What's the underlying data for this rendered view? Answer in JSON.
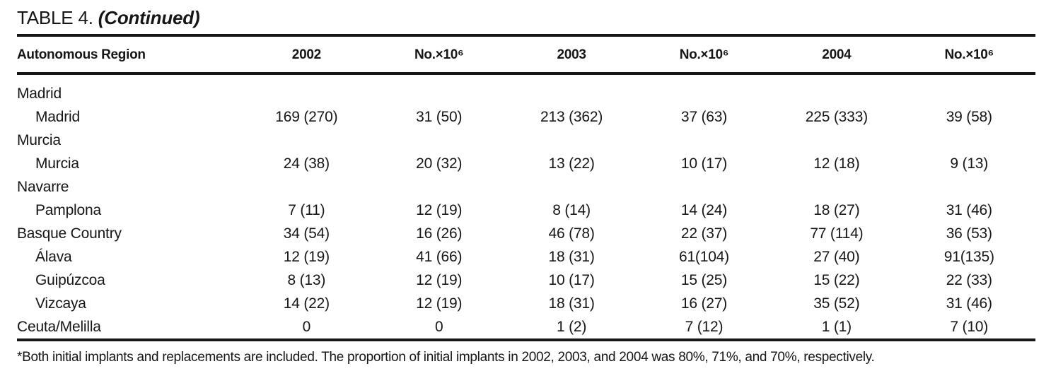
{
  "title": {
    "prefix": "TABLE 4. ",
    "continued": "(Continued)"
  },
  "table": {
    "region_header": "Autonomous Region",
    "columns": [
      {
        "label": "2002"
      },
      {
        "label": "No.×10⁶"
      },
      {
        "label": "2003"
      },
      {
        "label": "No.×10⁶"
      },
      {
        "label": "2004"
      },
      {
        "label": "No.×10⁶"
      }
    ],
    "rows": [
      {
        "label": "Madrid",
        "indent": false,
        "values": [
          "",
          "",
          "",
          "",
          "",
          ""
        ]
      },
      {
        "label": "Madrid",
        "indent": true,
        "values": [
          "169 (270)",
          "31 (50)",
          "213 (362)",
          "37 (63)",
          "225 (333)",
          "39 (58)"
        ]
      },
      {
        "label": "Murcia",
        "indent": false,
        "values": [
          "",
          "",
          "",
          "",
          "",
          ""
        ]
      },
      {
        "label": "Murcia",
        "indent": true,
        "values": [
          "24 (38)",
          "20 (32)",
          "13 (22)",
          "10 (17)",
          "12 (18)",
          "9 (13)"
        ]
      },
      {
        "label": "Navarre",
        "indent": false,
        "values": [
          "",
          "",
          "",
          "",
          "",
          ""
        ]
      },
      {
        "label": "Pamplona",
        "indent": true,
        "values": [
          "7 (11)",
          "12 (19)",
          "8 (14)",
          "14 (24)",
          "18 (27)",
          "31 (46)"
        ]
      },
      {
        "label": "Basque Country",
        "indent": false,
        "values": [
          "34 (54)",
          "16 (26)",
          "46 (78)",
          "22 (37)",
          "77 (114)",
          "36 (53)"
        ]
      },
      {
        "label": "Álava",
        "indent": true,
        "values": [
          "12 (19)",
          "41 (66)",
          "18 (31)",
          "61(104)",
          "27 (40)",
          "91(135)"
        ]
      },
      {
        "label": "Guipúzcoa",
        "indent": true,
        "values": [
          "8 (13)",
          "12 (19)",
          "10 (17)",
          "15 (25)",
          "15 (22)",
          "22 (33)"
        ]
      },
      {
        "label": "Vizcaya",
        "indent": true,
        "values": [
          "14 (22)",
          "12 (19)",
          "18 (31)",
          "16 (27)",
          "35 (52)",
          "31 (46)"
        ]
      },
      {
        "label": "Ceuta/Melilla",
        "indent": false,
        "values": [
          "0",
          "0",
          "1 (2)",
          "7 (12)",
          "1 (1)",
          "7 (10)"
        ]
      }
    ]
  },
  "footnote": "*Both initial implants and replacements are included. The proportion of initial implants in 2002, 2003, and 2004 was 80%, 71%, and 70%, respectively.",
  "colors": {
    "background": "#ffffff",
    "text": "#161616",
    "rule": "#161616"
  }
}
